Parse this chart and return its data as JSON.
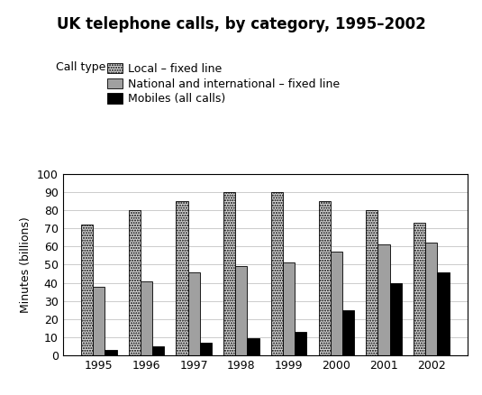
{
  "title": "UK telephone calls, by category, 1995–2002",
  "ylabel": "Minutes (billions)",
  "ylim": [
    0,
    100
  ],
  "yticks": [
    0,
    10,
    20,
    30,
    40,
    50,
    60,
    70,
    80,
    90,
    100
  ],
  "years": [
    1995,
    1996,
    1997,
    1998,
    1999,
    2000,
    2001,
    2002
  ],
  "local_fixed": [
    72,
    80,
    85,
    90,
    90,
    85,
    80,
    73
  ],
  "national_fixed": [
    38,
    41,
    46,
    49,
    51,
    57,
    61,
    62
  ],
  "mobiles": [
    3,
    5,
    7,
    9.5,
    13,
    25,
    40,
    46
  ],
  "color_local_face": "#d8d8d8",
  "color_national_face": "#a0a0a0",
  "color_mobiles": "#000000",
  "legend_labels": [
    "Local – fixed line",
    "National and international – fixed line",
    "Mobiles (all calls)"
  ],
  "call_type_label": "Call type:",
  "bar_width": 0.25,
  "figsize": [
    5.35,
    4.38
  ],
  "dpi": 100,
  "grid_color": "#cccccc",
  "title_fontsize": 12,
  "label_fontsize": 9,
  "tick_fontsize": 9
}
